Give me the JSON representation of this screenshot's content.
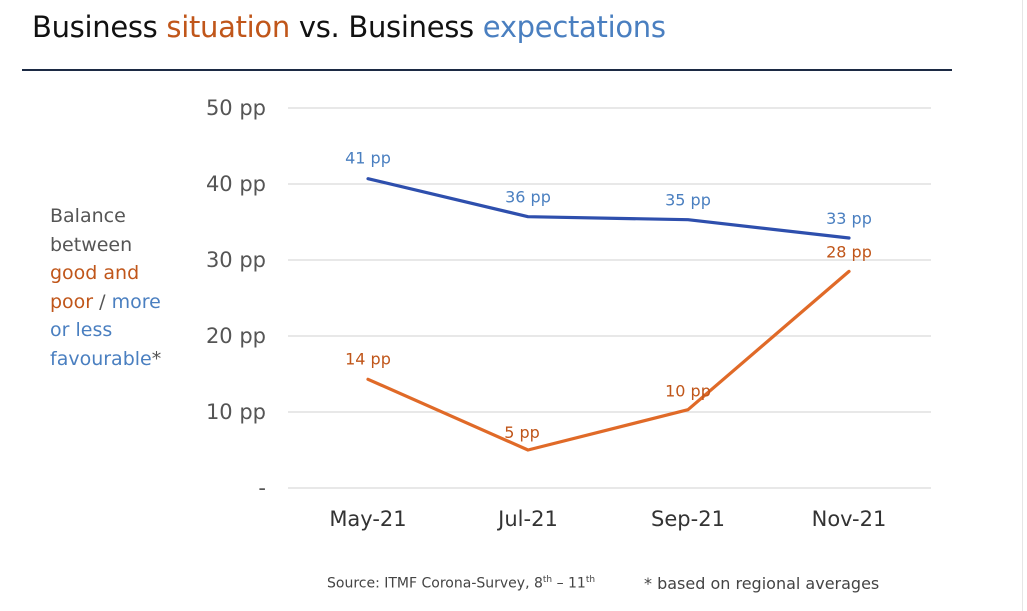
{
  "title": {
    "part1": "Business ",
    "part2": "situation",
    "part3": " vs. Business ",
    "part4": "expectations"
  },
  "ylabel": {
    "line1": "Balance",
    "line2": "between",
    "line3": "good and",
    "line4a": "poor",
    "line4b": " / ",
    "line4c": "more",
    "line5": "or less",
    "line6a": "favourable",
    "line6b": "*"
  },
  "source": {
    "prefix": "Source: ITMF Corona-Survey, 8",
    "sup1": "th",
    "mid": " – 11",
    "sup2": "th"
  },
  "footnote": "* based on regional averages",
  "colors": {
    "situation": "#e06a28",
    "expectations": "#2e4fad",
    "situation_label": "#c0561a",
    "expectations_label": "#4a7fc0"
  },
  "chart_data": {
    "type": "line",
    "categories": [
      "May-21",
      "Jul-21",
      "Sep-21",
      "Nov-21"
    ],
    "ylim": [
      0,
      50
    ],
    "yticks": [
      0,
      10,
      20,
      30,
      40,
      50
    ],
    "ytick_labels": [
      "-",
      "10 pp",
      "20 pp",
      "30 pp",
      "40 pp",
      "50 pp"
    ],
    "grid": true,
    "series": [
      {
        "key": "expectations",
        "values": [
          40.7,
          35.7,
          35.3,
          32.9
        ],
        "labels": [
          "41 pp",
          "36 pp",
          "35 pp",
          "33 pp"
        ]
      },
      {
        "key": "situation",
        "values": [
          14.3,
          5.0,
          10.3,
          28.5
        ],
        "labels": [
          "14 pp",
          "5 pp",
          "10 pp",
          "28 pp"
        ]
      }
    ]
  }
}
